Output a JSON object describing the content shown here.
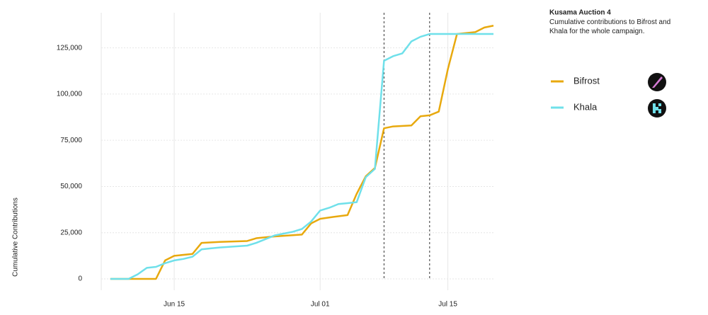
{
  "chart_data": {
    "type": "line",
    "title": "Kusama Auction 4",
    "subtitle": "Cumulative contributions to Bifrost and Khala for the whole campaign.",
    "y_label": "Cumulative Contributions",
    "xlim": [
      7,
      50
    ],
    "xticks": [
      {
        "value": 15,
        "label": "Jun 15"
      },
      {
        "value": 31,
        "label": "Jul 01"
      },
      {
        "value": 45,
        "label": "Jul 15"
      }
    ],
    "ylim": [
      0,
      144000
    ],
    "yticks": [
      0,
      {
        "value": 25000,
        "label": "25,000"
      },
      {
        "value": 50000,
        "label": "50,000"
      },
      {
        "value": 75000,
        "label": "75,000"
      },
      {
        "value": 100000,
        "label": "100,000"
      },
      {
        "value": 125000,
        "label": "125,000"
      }
    ],
    "grid": true,
    "vlines": [
      38,
      43
    ],
    "series": [
      {
        "name": "Bifrost",
        "color": "#e8a90e",
        "x": [
          8,
          13,
          14,
          15,
          17,
          18,
          20,
          23,
          24,
          26,
          29,
          30,
          31,
          32.4,
          34,
          35,
          36,
          37,
          38,
          39,
          41,
          42,
          43,
          44,
          45,
          46,
          48,
          49,
          50
        ],
        "values": [
          0,
          0,
          10000,
          12500,
          13500,
          19500,
          20000,
          20500,
          22000,
          23000,
          24000,
          30000,
          32500,
          33500,
          34500,
          46000,
          55500,
          60000,
          81500,
          82500,
          83000,
          88000,
          88500,
          90500,
          113500,
          132500,
          133500,
          136000,
          137000
        ]
      },
      {
        "name": "Khala",
        "color": "#6fe0ea",
        "x": [
          8,
          10,
          11,
          12,
          13,
          14,
          15,
          16,
          17,
          18,
          19,
          20,
          23,
          24,
          26,
          27,
          28,
          29,
          30,
          31,
          32,
          33,
          34,
          35,
          36,
          37,
          38,
          39,
          40,
          41,
          42,
          43,
          44,
          46,
          48,
          50
        ],
        "values": [
          0,
          0,
          2500,
          6000,
          6500,
          8500,
          10000,
          10800,
          12000,
          16000,
          16500,
          17000,
          18000,
          19500,
          23500,
          24500,
          25500,
          27000,
          31000,
          37000,
          38500,
          40500,
          41000,
          41500,
          55000,
          59500,
          118000,
          120500,
          122000,
          128500,
          131000,
          132500,
          132500,
          132500,
          132500,
          132500
        ]
      }
    ]
  }
}
